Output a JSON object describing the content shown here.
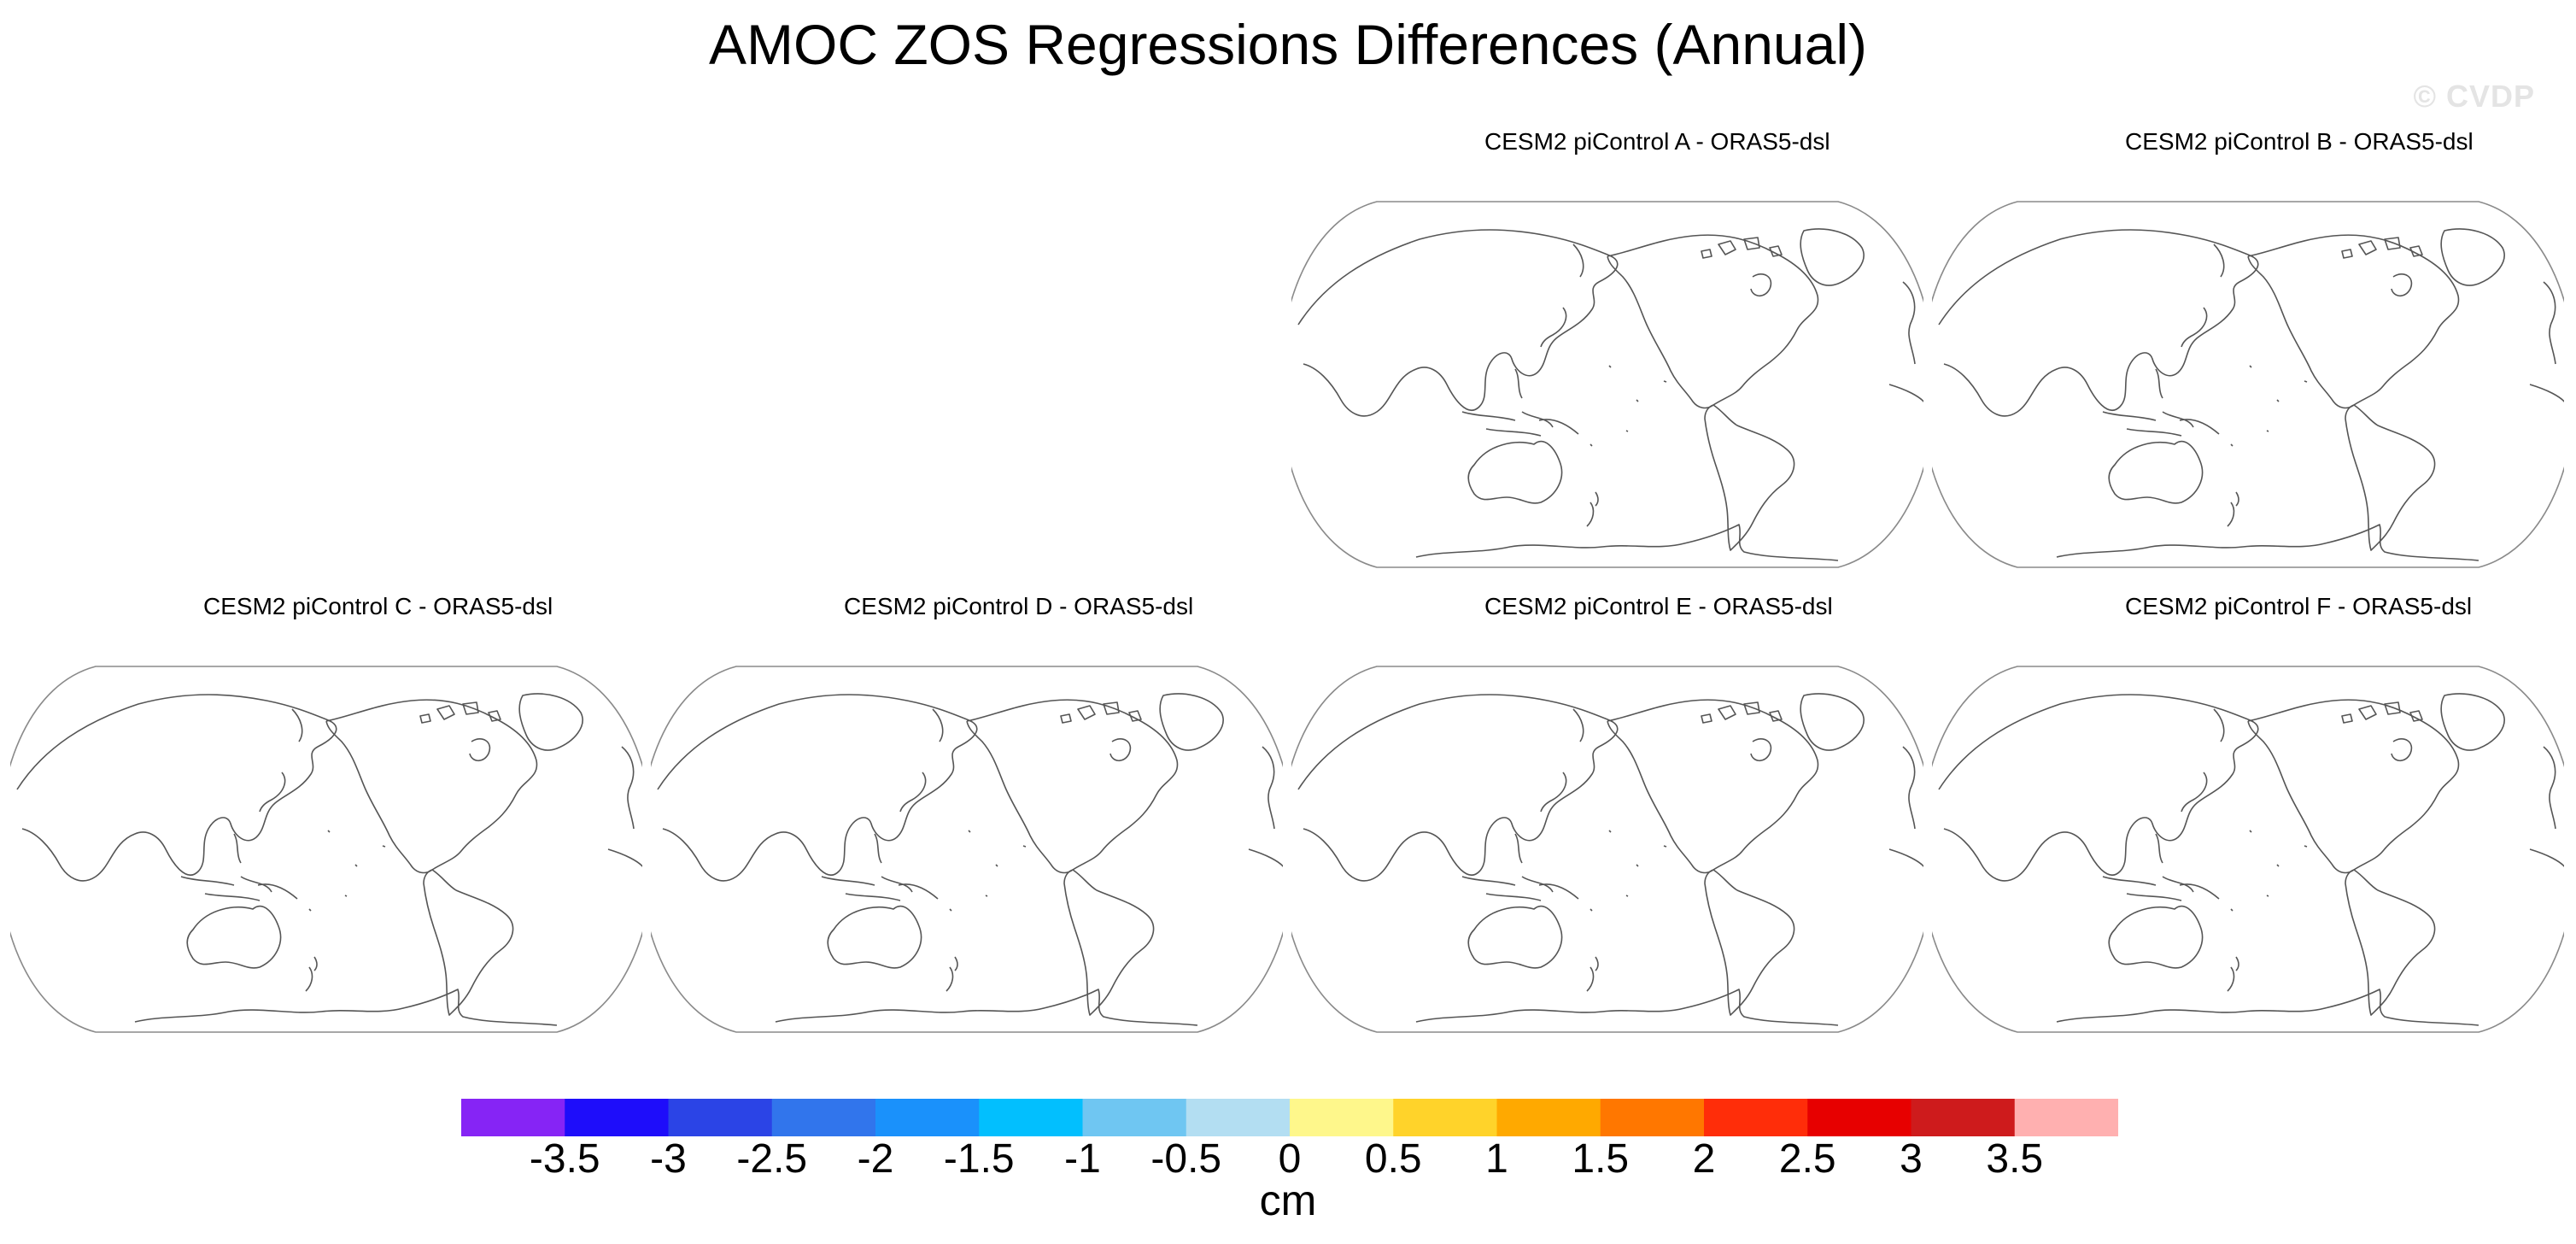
{
  "title": "AMOC ZOS Regressions Differences (Annual)",
  "watermark": "© CVDP",
  "panels": [
    {
      "title": "CESM2 piControl A - ORAS5-dsl"
    },
    {
      "title": "CESM2 piControl B - ORAS5-dsl"
    },
    {
      "title": "CESM2 piControl C - ORAS5-dsl"
    },
    {
      "title": "CESM2 piControl D - ORAS5-dsl"
    },
    {
      "title": "CESM2 piControl E - ORAS5-dsl"
    },
    {
      "title": "CESM2 piControl F - ORAS5-dsl"
    }
  ],
  "colorbar": {
    "units": "cm",
    "labels": [
      "-3.5",
      "-3",
      "-2.5",
      "-2",
      "-1.5",
      "-1",
      "-0.5",
      "0",
      "0.5",
      "1",
      "1.5",
      "2",
      "2.5",
      "3",
      "3.5"
    ],
    "colors": [
      "#8624f5",
      "#1e0dfa",
      "#2b44e6",
      "#3175ec",
      "#1a91fb",
      "#02bffe",
      "#6fc6f2",
      "#b3def2",
      "#fef78b",
      "#ffd32a",
      "#ffa900",
      "#ff7700",
      "#ff2d09",
      "#e70000",
      "#ce1b1c",
      "#ffb0b0"
    ]
  },
  "map": {
    "projection": "Robinson",
    "central_longitude": "200E",
    "field": "blank"
  }
}
